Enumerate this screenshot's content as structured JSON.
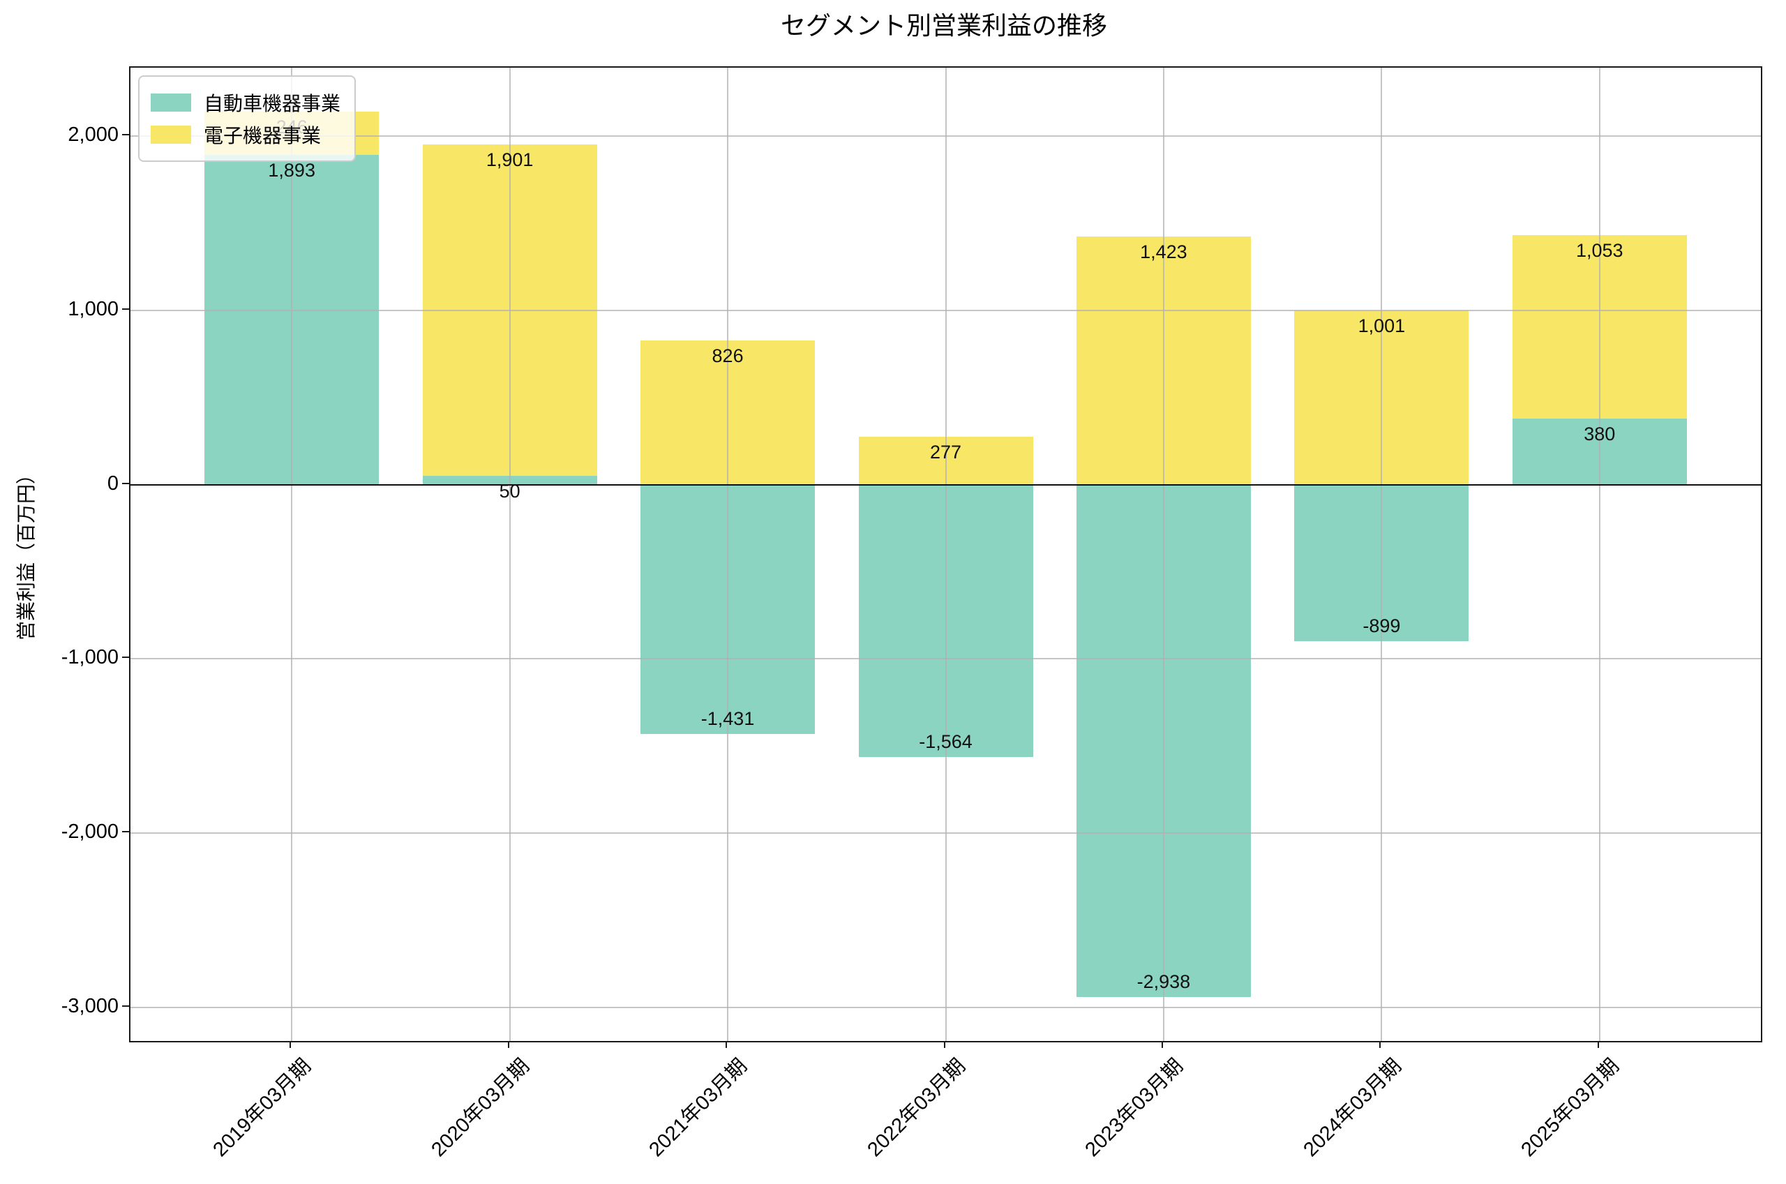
{
  "title": "セグメント別営業利益の推移",
  "ylabel": "営業利益（百万円）",
  "chart_data": {
    "type": "bar",
    "stacked": true,
    "title": "セグメント別営業利益の推移",
    "ylabel": "営業利益（百万円）",
    "xlabel": "",
    "categories": [
      "2019年03月期",
      "2020年03月期",
      "2021年03月期",
      "2022年03月期",
      "2023年03月期",
      "2024年03月期",
      "2025年03月期"
    ],
    "series": [
      {
        "name": "自動車機器事業",
        "color": "#8BD4C2",
        "values": [
          1893,
          50,
          -1431,
          -1564,
          -2938,
          -899,
          380
        ]
      },
      {
        "name": "電子機器事業",
        "color": "#F8E767",
        "values": [
          246,
          1901,
          826,
          277,
          1423,
          1001,
          1053
        ]
      }
    ],
    "bar_label_values": {
      "自動車機器事業": [
        "1,893",
        "50",
        "-1,431",
        "-1,564",
        "-2,938",
        "-899",
        "380"
      ],
      "電子機器事業": [
        "246",
        "1,901",
        "826",
        "277",
        "1,423",
        "1,001",
        "1,053"
      ]
    },
    "yticks": [
      2000,
      1000,
      0,
      -1000,
      -2000,
      -3000
    ],
    "ytick_labels": [
      "2,000",
      "1,000",
      "0",
      "-1,000",
      "-2,000",
      "-3,000"
    ],
    "ylim": [
      -3192,
      2393
    ],
    "grid": true,
    "grid_color": "#b2b2b2",
    "zero_line": true,
    "legend_position": "upper left",
    "bar_width_ratio": 0.8
  },
  "legend": {
    "items": [
      {
        "label": "自動車機器事業",
        "color": "#8BD4C2"
      },
      {
        "label": "電子機器事業",
        "color": "#F8E767"
      }
    ]
  }
}
